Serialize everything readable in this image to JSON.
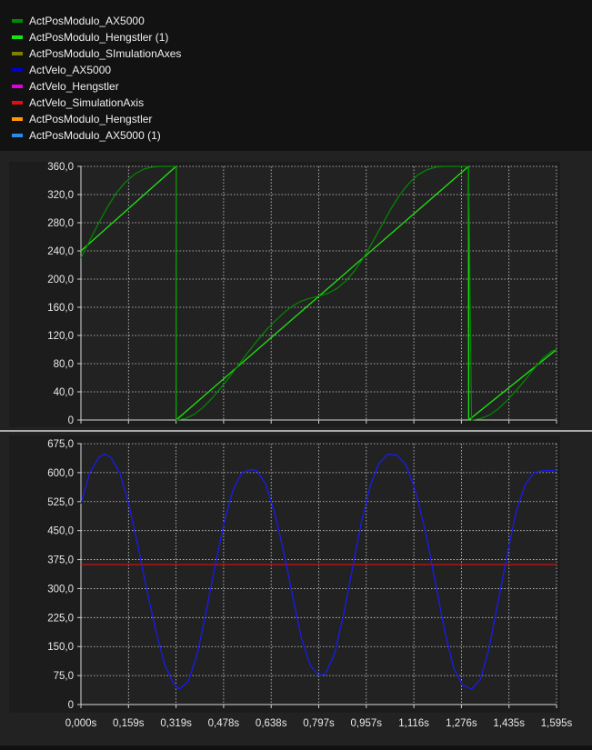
{
  "legend": [
    {
      "label": "ActPosModulo_AX5000",
      "color": "#008a00"
    },
    {
      "label": "ActPosModulo_Hengstler (1)",
      "color": "#14e614"
    },
    {
      "label": "ActPosModulo_SImulationAxes",
      "color": "#808000"
    },
    {
      "label": "ActVelo_AX5000",
      "color": "#0000d0"
    },
    {
      "label": "ActVelo_Hengstler",
      "color": "#e000e0"
    },
    {
      "label": "ActVelo_SimulationAxis",
      "color": "#e01010"
    },
    {
      "label": "ActPosModulo_Hengstler",
      "color": "#ff9900"
    },
    {
      "label": "ActPosModulo_AX5000 (1)",
      "color": "#2b8ce6"
    }
  ],
  "chart_data": [
    {
      "type": "line",
      "ylim": [
        0,
        360
      ],
      "xlim": [
        0,
        1.595
      ],
      "grid": true,
      "y_ticks": [
        "0",
        "40,0",
        "80,0",
        "120,0",
        "160,0",
        "200,0",
        "240,0",
        "280,0",
        "320,0",
        "360,0"
      ],
      "series": [
        {
          "name": "ActPosModulo_AX5000",
          "color": "#008a00",
          "x": [
            0,
            0.03,
            0.06,
            0.09,
            0.12,
            0.15,
            0.18,
            0.21,
            0.24,
            0.27,
            0.3,
            0.319,
            0.32,
            0.35,
            0.38,
            0.41,
            0.44,
            0.47,
            0.5,
            0.53,
            0.56,
            0.59,
            0.62,
            0.65,
            0.68,
            0.71,
            0.74,
            0.77,
            0.8,
            0.83,
            0.86,
            0.89,
            0.92,
            0.95,
            0.98,
            1.01,
            1.04,
            1.07,
            1.1,
            1.13,
            1.16,
            1.19,
            1.22,
            1.25,
            1.28,
            1.3,
            1.31,
            1.34,
            1.37,
            1.4,
            1.43,
            1.46,
            1.49,
            1.52,
            1.55,
            1.58,
            1.595
          ],
          "y": [
            230,
            255,
            280,
            303,
            323,
            338,
            349,
            356,
            359,
            360,
            360,
            360,
            0,
            2,
            8,
            18,
            31,
            46,
            62,
            79,
            96,
            112,
            127,
            140,
            152,
            162,
            169,
            173,
            176,
            180,
            187,
            198,
            213,
            232,
            254,
            277,
            300,
            320,
            336,
            348,
            355,
            359,
            360,
            360,
            360,
            360,
            0,
            2,
            7,
            16,
            28,
            42,
            57,
            73,
            88,
            98,
            100
          ]
        },
        {
          "name": "ActPosModulo_Hengstler (1)",
          "color": "#14e614",
          "x": [
            0,
            0.319,
            0.3195,
            1.3,
            1.3005,
            1.595
          ],
          "y": [
            240,
            360,
            0,
            360,
            0,
            100
          ]
        },
        {
          "name": "ActPosModulo_SImulationAxes",
          "color": "#808000",
          "x": [
            0,
            0.319,
            0.3195,
            1.3,
            1.3005,
            1.595
          ],
          "y": [
            240,
            360,
            0,
            360,
            0,
            100
          ]
        }
      ]
    },
    {
      "type": "line",
      "ylim": [
        0,
        675
      ],
      "xlim": [
        0,
        1.595
      ],
      "grid": true,
      "y_ticks": [
        "0",
        "75,0",
        "150,0",
        "225,0",
        "300,0",
        "375,0",
        "450,0",
        "525,0",
        "600,0",
        "675,0"
      ],
      "x_ticks": [
        "0,000s",
        "0,159s",
        "0,319s",
        "0,478s",
        "0,638s",
        "0,797s",
        "0,957s",
        "1,116s",
        "1,276s",
        "1,435s",
        "1,595s"
      ],
      "series": [
        {
          "name": "ActVelo_AX5000",
          "color": "#1a1aff",
          "x": [
            0,
            0.03,
            0.06,
            0.08,
            0.1,
            0.13,
            0.16,
            0.19,
            0.22,
            0.25,
            0.28,
            0.31,
            0.33,
            0.36,
            0.39,
            0.42,
            0.45,
            0.48,
            0.51,
            0.54,
            0.57,
            0.59,
            0.62,
            0.65,
            0.68,
            0.71,
            0.74,
            0.77,
            0.8,
            0.82,
            0.85,
            0.88,
            0.91,
            0.94,
            0.97,
            1.0,
            1.03,
            1.06,
            1.09,
            1.11,
            1.13,
            1.16,
            1.19,
            1.22,
            1.25,
            1.28,
            1.31,
            1.34,
            1.37,
            1.4,
            1.43,
            1.46,
            1.49,
            1.52,
            1.55,
            1.58,
            1.595
          ],
          "y": [
            520,
            600,
            640,
            648,
            640,
            600,
            520,
            415,
            300,
            195,
            105,
            55,
            40,
            60,
            130,
            240,
            360,
            470,
            555,
            600,
            608,
            605,
            570,
            495,
            395,
            280,
            170,
            100,
            75,
            80,
            130,
            230,
            350,
            470,
            565,
            625,
            648,
            645,
            620,
            580,
            530,
            430,
            310,
            190,
            95,
            50,
            40,
            65,
            150,
            270,
            390,
            500,
            570,
            600,
            605,
            605,
            605
          ]
        },
        {
          "name": "ActVelo_SimulationAxis",
          "color": "#e01010",
          "x": [
            0,
            1.595
          ],
          "y": [
            362,
            362
          ]
        }
      ]
    }
  ]
}
